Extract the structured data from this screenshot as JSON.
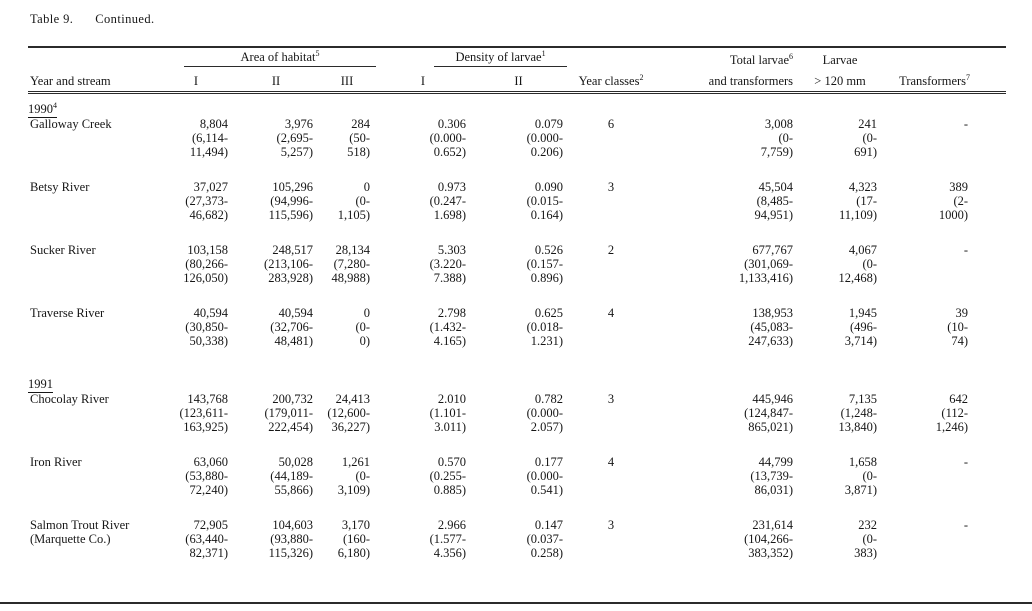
{
  "page": {
    "title": "Table 9.",
    "title_continued": "Continued."
  },
  "table": {
    "headers": {
      "year_and_stream": "Year and stream",
      "area_group": "Area of habitat",
      "area_group_sup": "5",
      "area_subs": [
        "I",
        "II",
        "III"
      ],
      "density_group": "Density of larvae",
      "density_group_sup": "1",
      "density_subs": [
        "I",
        "II"
      ],
      "year_classes": "Year classes",
      "year_classes_sup": "2",
      "total_larvae_line1": "Total larvae",
      "total_larvae_sup": "6",
      "total_larvae_line2": "and transformers",
      "larvae_line1": "Larvae",
      "larvae_line2": "> 120 mm",
      "transformers": "Transformers",
      "transformers_sup": "7"
    },
    "groups": [
      {
        "year": "1990",
        "sup": "4",
        "rows": [
          {
            "name": [
              "Galloway Creek"
            ],
            "area1": [
              "8,804",
              "(6,114-",
              "11,494)"
            ],
            "area2": [
              "3,976",
              "(2,695-",
              "5,257)"
            ],
            "area3": [
              "284",
              "(50-",
              "518)"
            ],
            "dens1": [
              "0.306",
              "(0.000-",
              "0.652)"
            ],
            "dens2": [
              "0.079",
              "(0.000-",
              "0.206)"
            ],
            "yc": "6",
            "total": [
              "3,008",
              "(0-",
              "7,759)"
            ],
            "gt120": [
              "241",
              "(0-",
              "691)"
            ],
            "trans": [
              "-"
            ]
          },
          {
            "name": [
              "Betsy River"
            ],
            "area1": [
              "37,027",
              "(27,373-",
              "46,682)"
            ],
            "area2": [
              "105,296",
              "(94,996-",
              "115,596)"
            ],
            "area3": [
              "0",
              "(0-",
              "1,105)"
            ],
            "dens1": [
              "0.973",
              "(0.247-",
              "1.698)"
            ],
            "dens2": [
              "0.090",
              "(0.015-",
              "0.164)"
            ],
            "yc": "3",
            "total": [
              "45,504",
              "(8,485-",
              "94,951)"
            ],
            "gt120": [
              "4,323",
              "(17-",
              "11,109)"
            ],
            "trans": [
              "389",
              "(2-",
              "1000)"
            ]
          },
          {
            "name": [
              "Sucker River"
            ],
            "area1": [
              "103,158",
              "(80,266-",
              "126,050)"
            ],
            "area2": [
              "248,517",
              "(213,106-",
              "283,928)"
            ],
            "area3": [
              "28,134",
              "(7,280-",
              "48,988)"
            ],
            "dens1": [
              "5.303",
              "(3.220-",
              "7.388)"
            ],
            "dens2": [
              "0.526",
              "(0.157-",
              "0.896)"
            ],
            "yc": "2",
            "total": [
              "677,767",
              "(301,069-",
              "1,133,416)"
            ],
            "gt120": [
              "4,067",
              "(0-",
              "12,468)"
            ],
            "trans": [
              "-"
            ]
          },
          {
            "name": [
              "Traverse River"
            ],
            "area1": [
              "40,594",
              "(30,850-",
              "50,338)"
            ],
            "area2": [
              "40,594",
              "(32,706-",
              "48,481)"
            ],
            "area3": [
              "0",
              "(0-",
              "0)"
            ],
            "dens1": [
              "2.798",
              "(1.432-",
              "4.165)"
            ],
            "dens2": [
              "0.625",
              "(0.018-",
              "1.231)"
            ],
            "yc": "4",
            "total": [
              "138,953",
              "(45,083-",
              "247,633)"
            ],
            "gt120": [
              "1,945",
              "(496-",
              "3,714)"
            ],
            "trans": [
              "39",
              "(10-",
              "74)"
            ]
          }
        ]
      },
      {
        "year": "1991",
        "sup": "",
        "rows": [
          {
            "name": [
              "Chocolay River"
            ],
            "area1": [
              "143,768",
              "(123,611-",
              "163,925)"
            ],
            "area2": [
              "200,732",
              "(179,011-",
              "222,454)"
            ],
            "area3": [
              "24,413",
              "(12,600-",
              "36,227)"
            ],
            "dens1": [
              "2.010",
              "(1.101-",
              "3.011)"
            ],
            "dens2": [
              "0.782",
              "(0.000-",
              "2.057)"
            ],
            "yc": "3",
            "total": [
              "445,946",
              "(124,847-",
              "865,021)"
            ],
            "gt120": [
              "7,135",
              "(1,248-",
              "13,840)"
            ],
            "trans": [
              "642",
              "(112-",
              "1,246)"
            ]
          },
          {
            "name": [
              "Iron River"
            ],
            "area1": [
              "63,060",
              "(53,880-",
              "72,240)"
            ],
            "area2": [
              "50,028",
              "(44,189-",
              "55,866)"
            ],
            "area3": [
              "1,261",
              "(0-",
              "3,109)"
            ],
            "dens1": [
              "0.570",
              "(0.255-",
              "0.885)"
            ],
            "dens2": [
              "0.177",
              "(0.000-",
              "0.541)"
            ],
            "yc": "4",
            "total": [
              "44,799",
              "(13,739-",
              "86,031)"
            ],
            "gt120": [
              "1,658",
              "(0-",
              "3,871)"
            ],
            "trans": [
              "-"
            ]
          },
          {
            "name": [
              "Salmon Trout River",
              "(Marquette Co.)"
            ],
            "area1": [
              "72,905",
              "(63,440-",
              "82,371)"
            ],
            "area2": [
              "104,603",
              "(93,880-",
              "115,326)"
            ],
            "area3": [
              "3,170",
              "(160-",
              "6,180)"
            ],
            "dens1": [
              "2.966",
              "(1.577-",
              "4.356)"
            ],
            "dens2": [
              "0.147",
              "(0.037-",
              "0.258)"
            ],
            "yc": "3",
            "total": [
              "231,614",
              "(104,266-",
              "383,352)"
            ],
            "gt120": [
              "232",
              "(0-",
              "383)"
            ],
            "trans": [
              "-"
            ]
          }
        ]
      }
    ]
  }
}
